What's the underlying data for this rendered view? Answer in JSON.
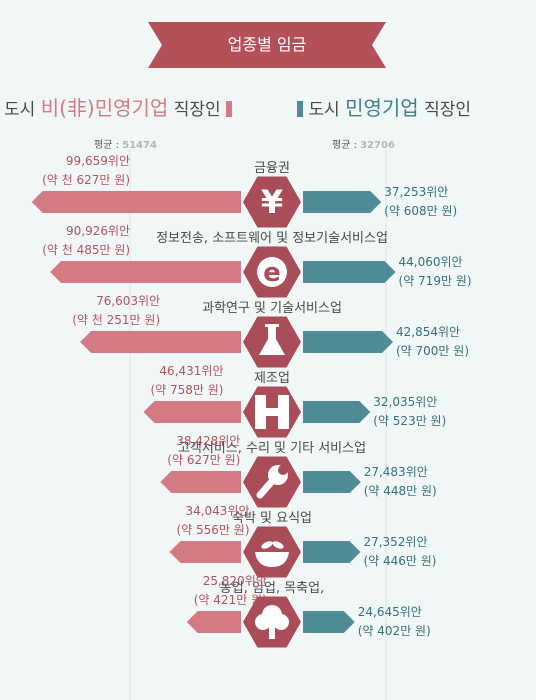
{
  "title": "업종별 임금",
  "legend": {
    "left_prefix": "도시 ",
    "left_highlight": "비(非)민영기업",
    "left_suffix": " 직장인",
    "right_prefix": "도시 ",
    "right_highlight": "민영기업",
    "right_suffix": " 직장인"
  },
  "averages": {
    "label": "평균 : ",
    "left": "51474",
    "right": "32706"
  },
  "colors": {
    "pink": "#d47a84",
    "teal": "#4f8c95",
    "hexagon": "#a94e58",
    "banner": "#b4505a"
  },
  "chart_data": {
    "type": "bar",
    "orientation": "horizontal-diverging",
    "categories": [
      "금융권",
      "정보전송, 소프트웨어 및 정보기술서비스업",
      "과학연구 및 기술서비스업",
      "제조업",
      "고객서비스, 수리 및 기타 서비스업",
      "숙박 및 요식업",
      "농업, 임업, 목축업,"
    ],
    "icons": [
      "yen-icon",
      "e-icon",
      "flask-icon",
      "factory-icon",
      "wrench-icon",
      "food-bowl-icon",
      "tree-icon"
    ],
    "series": [
      {
        "name": "도시 비(非)민영기업 직장인",
        "values": [
          99659,
          90926,
          76603,
          46431,
          38428,
          34043,
          25820
        ],
        "labels": [
          "99,659위안",
          "90,926위안",
          "76,603위안",
          "46,431위안",
          "38,428위안",
          "34,043위안",
          "25,820위안"
        ],
        "sublabels": [
          "(약 천 627만 원)",
          "(약 천 485만 원)",
          "(약 천 251만 원)",
          "(약 758만 원)",
          "(약 627만 원)",
          "(약 556만 원)",
          "(약 421만 원)"
        ]
      },
      {
        "name": "도시 민영기업 직장인",
        "values": [
          37253,
          44060,
          42854,
          32035,
          27483,
          27352,
          24645
        ],
        "labels": [
          "37,253위안",
          "44,060위안",
          "42,854위안",
          "32,035위안",
          "27,483위안",
          "27,352위안",
          "24,645위안"
        ],
        "sublabels": [
          "(약 608만 원)",
          "(약 719만 원)",
          "(약 700만 원)",
          "(약 523만 원)",
          "(약 448만 원)",
          "(약 446만 원)",
          "(약 402만 원)"
        ]
      }
    ]
  }
}
